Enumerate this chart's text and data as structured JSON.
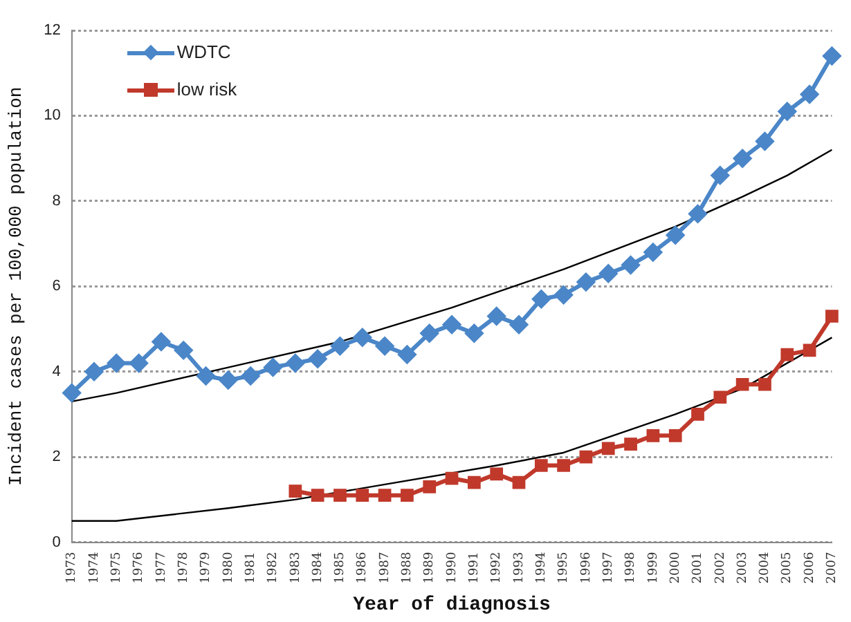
{
  "chart_data": {
    "type": "line",
    "xlabel": "Year of diagnosis",
    "ylabel": "Incident cases per 100,000 population",
    "categories": [
      "1973",
      "1974",
      "1975",
      "1976",
      "1977",
      "1978",
      "1979",
      "1980",
      "1981",
      "1982",
      "1983",
      "1984",
      "1985",
      "1986",
      "1987",
      "1988",
      "1989",
      "1990",
      "1991",
      "1992",
      "1993",
      "1994",
      "1995",
      "1996",
      "1997",
      "1998",
      "1999",
      "2000",
      "2001",
      "2002",
      "2003",
      "2004",
      "2005",
      "2006",
      "2007"
    ],
    "series": [
      {
        "name": "WDTC",
        "color": "#4a86c8",
        "marker": "diamond",
        "values": [
          3.5,
          4.0,
          4.2,
          4.2,
          4.7,
          4.5,
          3.9,
          3.8,
          3.9,
          4.1,
          4.2,
          4.3,
          4.6,
          4.8,
          4.6,
          4.4,
          4.9,
          5.1,
          4.9,
          5.3,
          5.1,
          5.7,
          5.8,
          6.1,
          6.3,
          6.5,
          6.8,
          7.2,
          7.7,
          8.6,
          9.0,
          9.4,
          10.1,
          10.5,
          11.4
        ]
      },
      {
        "name": "low risk",
        "color": "#c0392b",
        "marker": "square",
        "values": [
          null,
          null,
          null,
          null,
          null,
          null,
          null,
          null,
          null,
          null,
          1.2,
          1.1,
          1.1,
          1.1,
          1.1,
          1.1,
          1.3,
          1.5,
          1.4,
          1.6,
          1.4,
          1.8,
          1.8,
          2.0,
          2.2,
          2.3,
          2.5,
          2.5,
          3.0,
          3.4,
          3.7,
          3.7,
          4.4,
          4.5,
          5.3
        ]
      },
      {
        "color": "#000000",
        "marker": "none",
        "values": [
          3.3,
          null,
          3.5,
          null,
          null,
          null,
          null,
          4.1,
          null,
          null,
          null,
          null,
          4.7,
          null,
          null,
          null,
          null,
          5.5,
          null,
          null,
          null,
          null,
          6.4,
          null,
          null,
          null,
          null,
          7.4,
          null,
          null,
          8.1,
          null,
          8.6,
          null,
          9.2
        ]
      },
      {
        "color": "#000000",
        "marker": "none",
        "values": [
          0.5,
          null,
          0.5,
          null,
          null,
          null,
          null,
          0.8,
          null,
          null,
          1.0,
          null,
          null,
          null,
          null,
          null,
          null,
          null,
          null,
          1.8,
          null,
          null,
          2.1,
          null,
          null,
          null,
          null,
          3.0,
          null,
          null,
          3.6,
          null,
          4.2,
          null,
          4.8
        ]
      }
    ],
    "ylim": [
      0,
      12
    ],
    "yticks": [
      0,
      2,
      4,
      6,
      8,
      10,
      12
    ],
    "grid": "y",
    "legend": "top left"
  }
}
